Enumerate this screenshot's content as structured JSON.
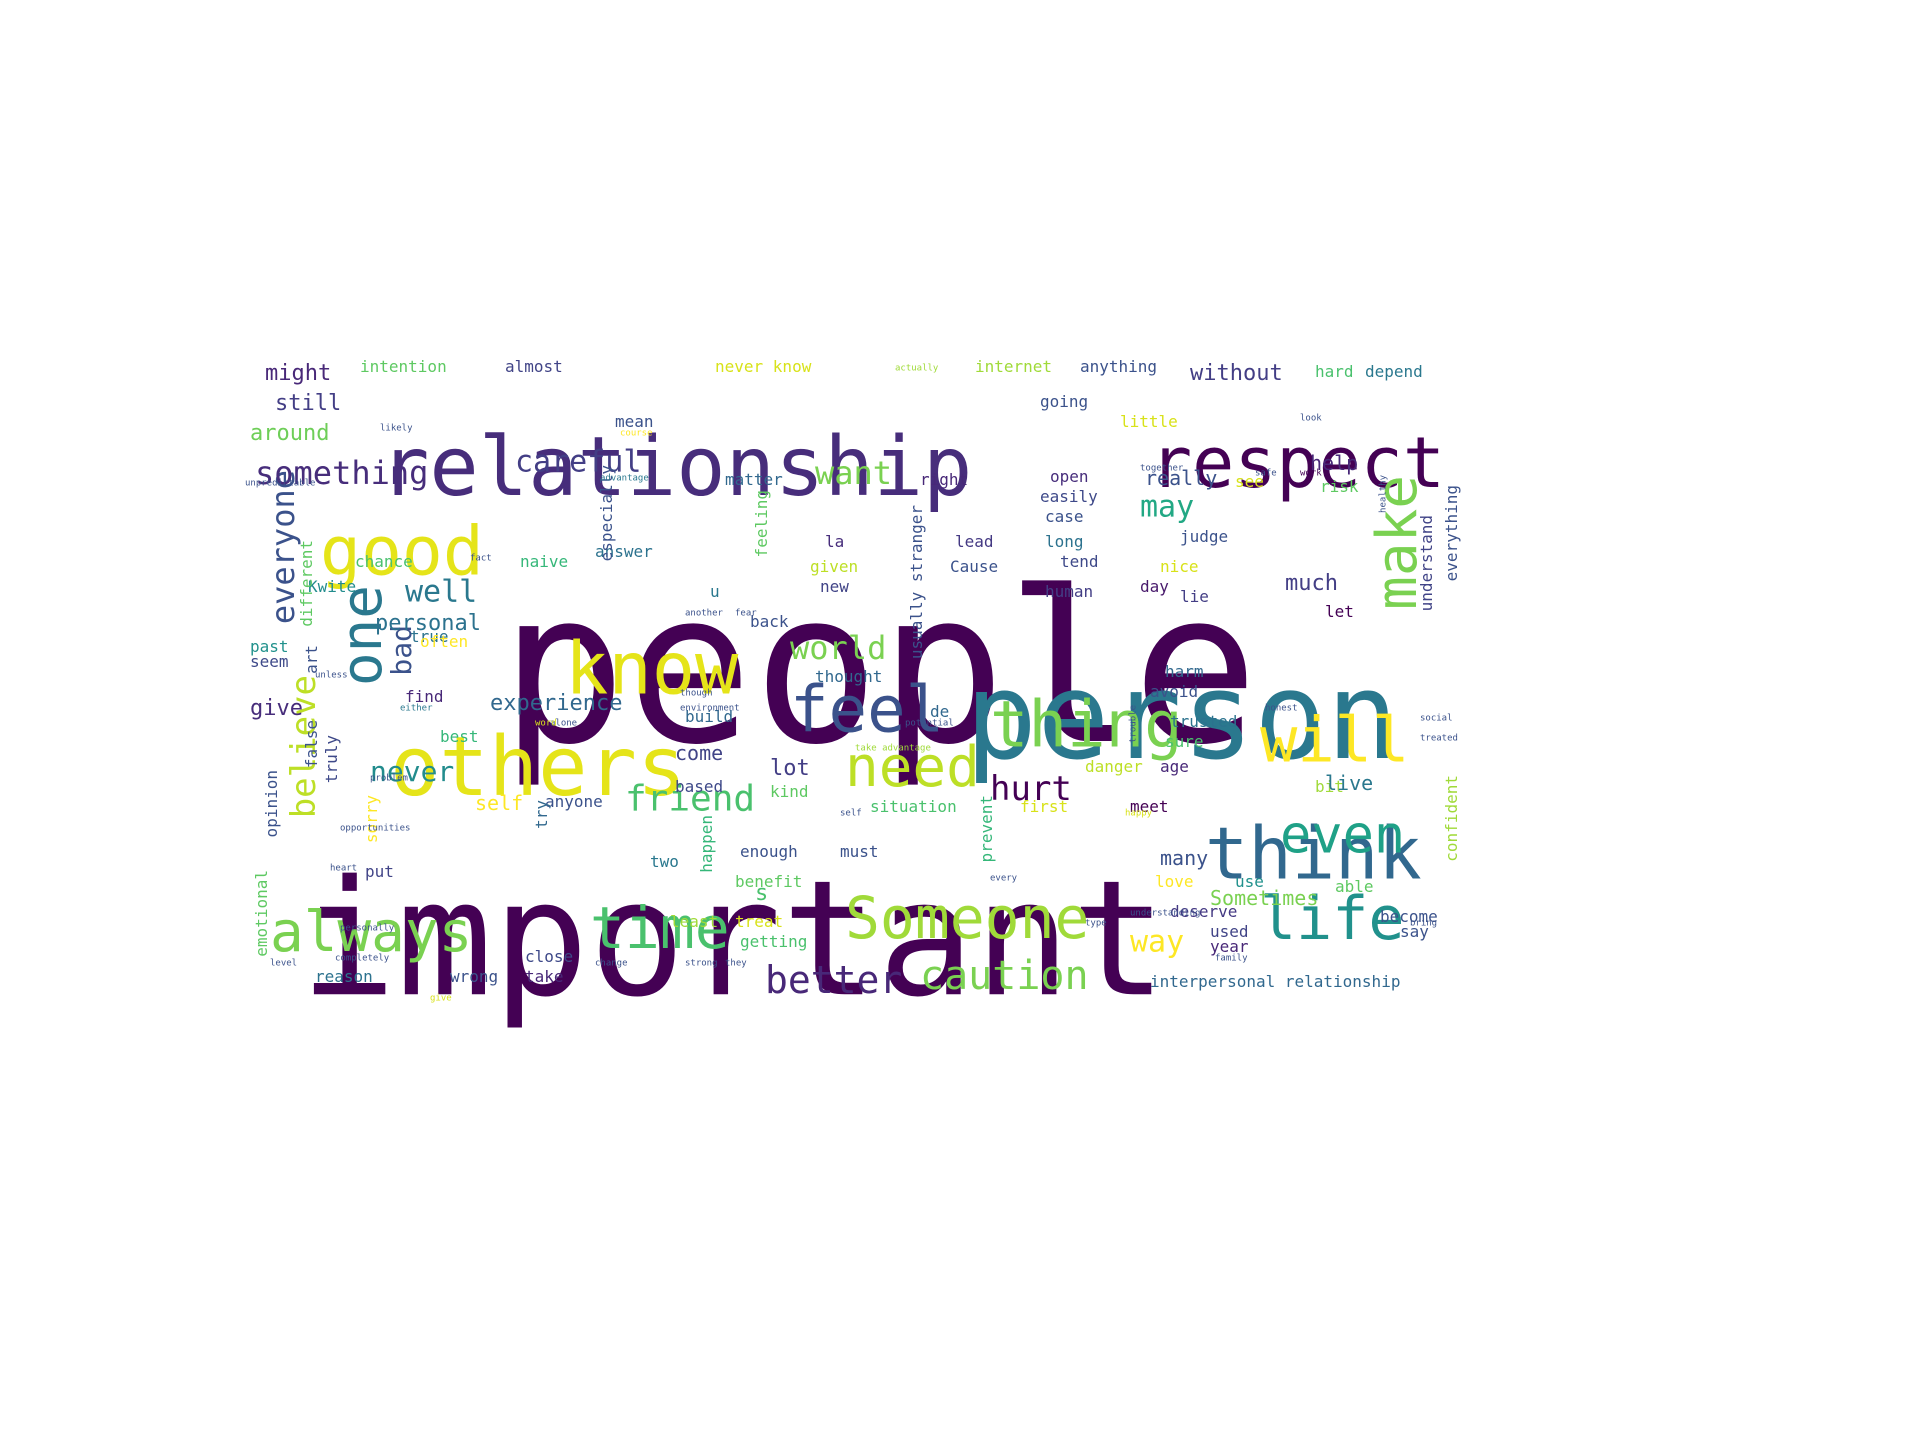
{
  "wordcloud": {
    "words": [
      {
        "text": "people",
        "color": "#440154"
      },
      {
        "text": "important",
        "color": "#440154"
      },
      {
        "text": "person",
        "color": "#2a788e"
      },
      {
        "text": "relationship",
        "color": "#472d7b"
      },
      {
        "text": "others",
        "color": "#e5e419"
      },
      {
        "text": "respect",
        "color": "#440154"
      },
      {
        "text": "think",
        "color": "#31688e"
      },
      {
        "text": "good",
        "color": "#e5e419"
      },
      {
        "text": "know",
        "color": "#e5e419"
      },
      {
        "text": "Someone",
        "color": "#a0da39"
      },
      {
        "text": "life",
        "color": "#21918c"
      },
      {
        "text": "time",
        "color": "#4ac16d"
      },
      {
        "text": "always",
        "color": "#7ad151"
      },
      {
        "text": "will",
        "color": "#fde725"
      },
      {
        "text": "thing",
        "color": "#7ad151"
      },
      {
        "text": "even",
        "color": "#1fa187"
      },
      {
        "text": "need",
        "color": "#bddf26"
      },
      {
        "text": "feel",
        "color": "#3b528b"
      },
      {
        "text": "one",
        "color": "#2a788e"
      },
      {
        "text": "make",
        "color": "#7ad151"
      },
      {
        "text": "caution",
        "color": "#7ad151"
      },
      {
        "text": "better",
        "color": "#482878"
      },
      {
        "text": "friend",
        "color": "#4ac16d"
      },
      {
        "text": "everyone",
        "color": "#3b528b"
      },
      {
        "text": "something",
        "color": "#472d7b"
      },
      {
        "text": "careful",
        "color": "#433e85"
      },
      {
        "text": "believe",
        "color": "#bddf26"
      },
      {
        "text": "world",
        "color": "#7ad151"
      },
      {
        "text": "want",
        "color": "#7ad151"
      },
      {
        "text": "way",
        "color": "#fde725"
      },
      {
        "text": "hurt",
        "color": "#440154"
      },
      {
        "text": "bad",
        "color": "#3b528b"
      },
      {
        "text": "well",
        "color": "#2a788e"
      },
      {
        "text": "never",
        "color": "#228c8d"
      },
      {
        "text": "may",
        "color": "#22a884"
      },
      {
        "text": "experience",
        "color": "#31688e"
      },
      {
        "text": "might",
        "color": "#482878"
      },
      {
        "text": "still",
        "color": "#433e85"
      },
      {
        "text": "around",
        "color": "#6ece58"
      },
      {
        "text": "without",
        "color": "#433e85"
      },
      {
        "text": "intention",
        "color": "#5ec962"
      },
      {
        "text": "almost",
        "color": "#414487"
      },
      {
        "text": "never know",
        "color": "#d8e219"
      },
      {
        "text": "internet",
        "color": "#a0da39"
      },
      {
        "text": "anything",
        "color": "#3b528b"
      },
      {
        "text": "hard",
        "color": "#4ac16d"
      },
      {
        "text": "depend",
        "color": "#2a788e"
      },
      {
        "text": "personal",
        "color": "#2c728e"
      },
      {
        "text": "self",
        "color": "#fde725"
      },
      {
        "text": "anyone",
        "color": "#3b528b"
      },
      {
        "text": "lot",
        "color": "#433e85"
      },
      {
        "text": "come",
        "color": "#414487"
      },
      {
        "text": "build",
        "color": "#31688e"
      },
      {
        "text": "based",
        "color": "#3e4989"
      },
      {
        "text": "give",
        "color": "#472d7b"
      },
      {
        "text": "find",
        "color": "#482878"
      },
      {
        "text": "best",
        "color": "#35b779"
      },
      {
        "text": "true",
        "color": "#2c728e"
      },
      {
        "text": "often",
        "color": "#fde725"
      },
      {
        "text": "seem",
        "color": "#3e4989"
      },
      {
        "text": "past",
        "color": "#21918c"
      },
      {
        "text": "chance",
        "color": "#4ac16d"
      },
      {
        "text": "Kwite",
        "color": "#228c8d"
      },
      {
        "text": "different",
        "color": "#5ec962"
      },
      {
        "text": "naive",
        "color": "#35b779"
      },
      {
        "text": "answer",
        "color": "#2c728e"
      },
      {
        "text": "especially",
        "color": "#3b528b"
      },
      {
        "text": "matter",
        "color": "#31688e"
      },
      {
        "text": "right",
        "color": "#482878"
      },
      {
        "text": "u",
        "color": "#2a788e"
      },
      {
        "text": "given",
        "color": "#bddf26"
      },
      {
        "text": "new",
        "color": "#414487"
      },
      {
        "text": "thought",
        "color": "#31688e"
      },
      {
        "text": "back",
        "color": "#3b528b"
      },
      {
        "text": "la",
        "color": "#472d7b"
      },
      {
        "text": "lead",
        "color": "#443983"
      },
      {
        "text": "Cause",
        "color": "#3b528b"
      },
      {
        "text": "de",
        "color": "#31688e"
      },
      {
        "text": "going",
        "color": "#3b528b"
      },
      {
        "text": "open",
        "color": "#472d7b"
      },
      {
        "text": "easily",
        "color": "#3e4989"
      },
      {
        "text": "case",
        "color": "#3b528b"
      },
      {
        "text": "long",
        "color": "#2c728e"
      },
      {
        "text": "tend",
        "color": "#3e4989"
      },
      {
        "text": "human",
        "color": "#433e85"
      },
      {
        "text": "really",
        "color": "#3b528b"
      },
      {
        "text": "see",
        "color": "#d8e219"
      },
      {
        "text": "help",
        "color": "#482878"
      },
      {
        "text": "risk",
        "color": "#5ec962"
      },
      {
        "text": "judge",
        "color": "#3b528b"
      },
      {
        "text": "nice",
        "color": "#d8e219"
      },
      {
        "text": "day",
        "color": "#481a6c"
      },
      {
        "text": "lie",
        "color": "#433e85"
      },
      {
        "text": "much",
        "color": "#433e85"
      },
      {
        "text": "let",
        "color": "#440154"
      },
      {
        "text": "harm",
        "color": "#31688e"
      },
      {
        "text": "avoid",
        "color": "#3b528b"
      },
      {
        "text": "trusted",
        "color": "#2c728e"
      },
      {
        "text": "sure",
        "color": "#4ac16d"
      },
      {
        "text": "age",
        "color": "#482878"
      },
      {
        "text": "danger",
        "color": "#bddf26"
      },
      {
        "text": "kind",
        "color": "#5ec962"
      },
      {
        "text": "situation",
        "color": "#4ac16d"
      },
      {
        "text": "first",
        "color": "#d8e219"
      },
      {
        "text": "meet",
        "color": "#440154"
      },
      {
        "text": "bit",
        "color": "#a0da39"
      },
      {
        "text": "live",
        "color": "#2a788e"
      },
      {
        "text": "many",
        "color": "#3b528b"
      },
      {
        "text": "use",
        "color": "#21918c"
      },
      {
        "text": "love",
        "color": "#fde725"
      },
      {
        "text": "Sometimes",
        "color": "#7ad151"
      },
      {
        "text": "able",
        "color": "#5ec962"
      },
      {
        "text": "deserve",
        "color": "#443983"
      },
      {
        "text": "become",
        "color": "#3b528b"
      },
      {
        "text": "used",
        "color": "#414487"
      },
      {
        "text": "year",
        "color": "#482878"
      },
      {
        "text": "say",
        "color": "#3b528b"
      },
      {
        "text": "interpersonal relationship",
        "color": "#31688e"
      },
      {
        "text": "enough",
        "color": "#3b528b"
      },
      {
        "text": "must",
        "color": "#3b528b"
      },
      {
        "text": "benefit",
        "color": "#5ec962"
      },
      {
        "text": "happen",
        "color": "#35b779"
      },
      {
        "text": "prevent",
        "color": "#35b779"
      },
      {
        "text": "least",
        "color": "#a0da39"
      },
      {
        "text": "treat",
        "color": "#d8e219"
      },
      {
        "text": "getting",
        "color": "#4ac16d"
      },
      {
        "text": "close",
        "color": "#3e4989"
      },
      {
        "text": "two",
        "color": "#2a788e"
      },
      {
        "text": "s",
        "color": "#4ac16d"
      },
      {
        "text": "put",
        "color": "#414487"
      },
      {
        "text": "wrong",
        "color": "#3b528b"
      },
      {
        "text": "take",
        "color": "#482878"
      },
      {
        "text": "reason",
        "color": "#2c728e"
      },
      {
        "text": "emotional",
        "color": "#5ec962"
      },
      {
        "text": "opinion",
        "color": "#3b528b"
      },
      {
        "text": "sorry",
        "color": "#fde725"
      },
      {
        "text": "try",
        "color": "#31688e"
      },
      {
        "text": "truly",
        "color": "#3e4989"
      },
      {
        "text": "false",
        "color": "#3b528b"
      },
      {
        "text": "art",
        "color": "#3b528b"
      },
      {
        "text": "mean",
        "color": "#3b528b"
      },
      {
        "text": "little",
        "color": "#d8e219"
      },
      {
        "text": "usually stranger",
        "color": "#3b528b"
      },
      {
        "text": "feeling",
        "color": "#5ec962"
      },
      {
        "text": "understand",
        "color": "#414487"
      },
      {
        "text": "everything",
        "color": "#3b528b"
      },
      {
        "text": "confident",
        "color": "#a0da39"
      },
      {
        "text": "unpredictable",
        "color": "#3b528b"
      },
      {
        "text": "advantage",
        "color": "#2a788e"
      },
      {
        "text": "likely",
        "color": "#3b528b"
      },
      {
        "text": "course",
        "color": "#fde725"
      },
      {
        "text": "social",
        "color": "#3b528b"
      },
      {
        "text": "treated",
        "color": "#3b528b"
      },
      {
        "text": "healthy",
        "color": "#3b528b"
      },
      {
        "text": "safe",
        "color": "#3b528b"
      },
      {
        "text": "work",
        "color": "#440154"
      },
      {
        "text": "look",
        "color": "#3b528b"
      },
      {
        "text": "actually",
        "color": "#a0da39"
      },
      {
        "text": "take advantage",
        "color": "#a0da39"
      },
      {
        "text": "potential",
        "color": "#3b528b"
      },
      {
        "text": "though",
        "color": "#3b528b"
      },
      {
        "text": "environment",
        "color": "#3b528b"
      },
      {
        "text": "alone",
        "color": "#3b528b"
      },
      {
        "text": "either",
        "color": "#2a788e"
      },
      {
        "text": "fear",
        "color": "#3b528b"
      },
      {
        "text": "another",
        "color": "#3b528b"
      },
      {
        "text": "word",
        "color": "#d8e219"
      },
      {
        "text": "problem",
        "color": "#3b528b"
      },
      {
        "text": "opportunities",
        "color": "#3b528b"
      },
      {
        "text": "unless",
        "color": "#3b528b"
      },
      {
        "text": "heart",
        "color": "#3b528b"
      },
      {
        "text": "personally",
        "color": "#3b528b"
      },
      {
        "text": "completely",
        "color": "#3b528b"
      },
      {
        "text": "level",
        "color": "#3b528b"
      },
      {
        "text": "change",
        "color": "#3b528b"
      },
      {
        "text": "strong",
        "color": "#3b528b"
      },
      {
        "text": "understanding",
        "color": "#3b528b"
      },
      {
        "text": "family",
        "color": "#3b528b"
      },
      {
        "text": "type",
        "color": "#3b528b"
      },
      {
        "text": "bring",
        "color": "#3b528b"
      },
      {
        "text": "happy",
        "color": "#d8e219"
      },
      {
        "text": "every",
        "color": "#3b528b"
      },
      {
        "text": "fact",
        "color": "#3b528b"
      },
      {
        "text": "together",
        "color": "#3b528b"
      },
      {
        "text": "honest",
        "color": "#3b528b"
      },
      {
        "text": "trouble",
        "color": "#3b528b"
      },
      {
        "text": "give",
        "color": "#d8e219"
      },
      {
        "text": "they",
        "color": "#3b528b"
      },
      {
        "text": "self",
        "color": "#3b528b"
      }
    ]
  }
}
